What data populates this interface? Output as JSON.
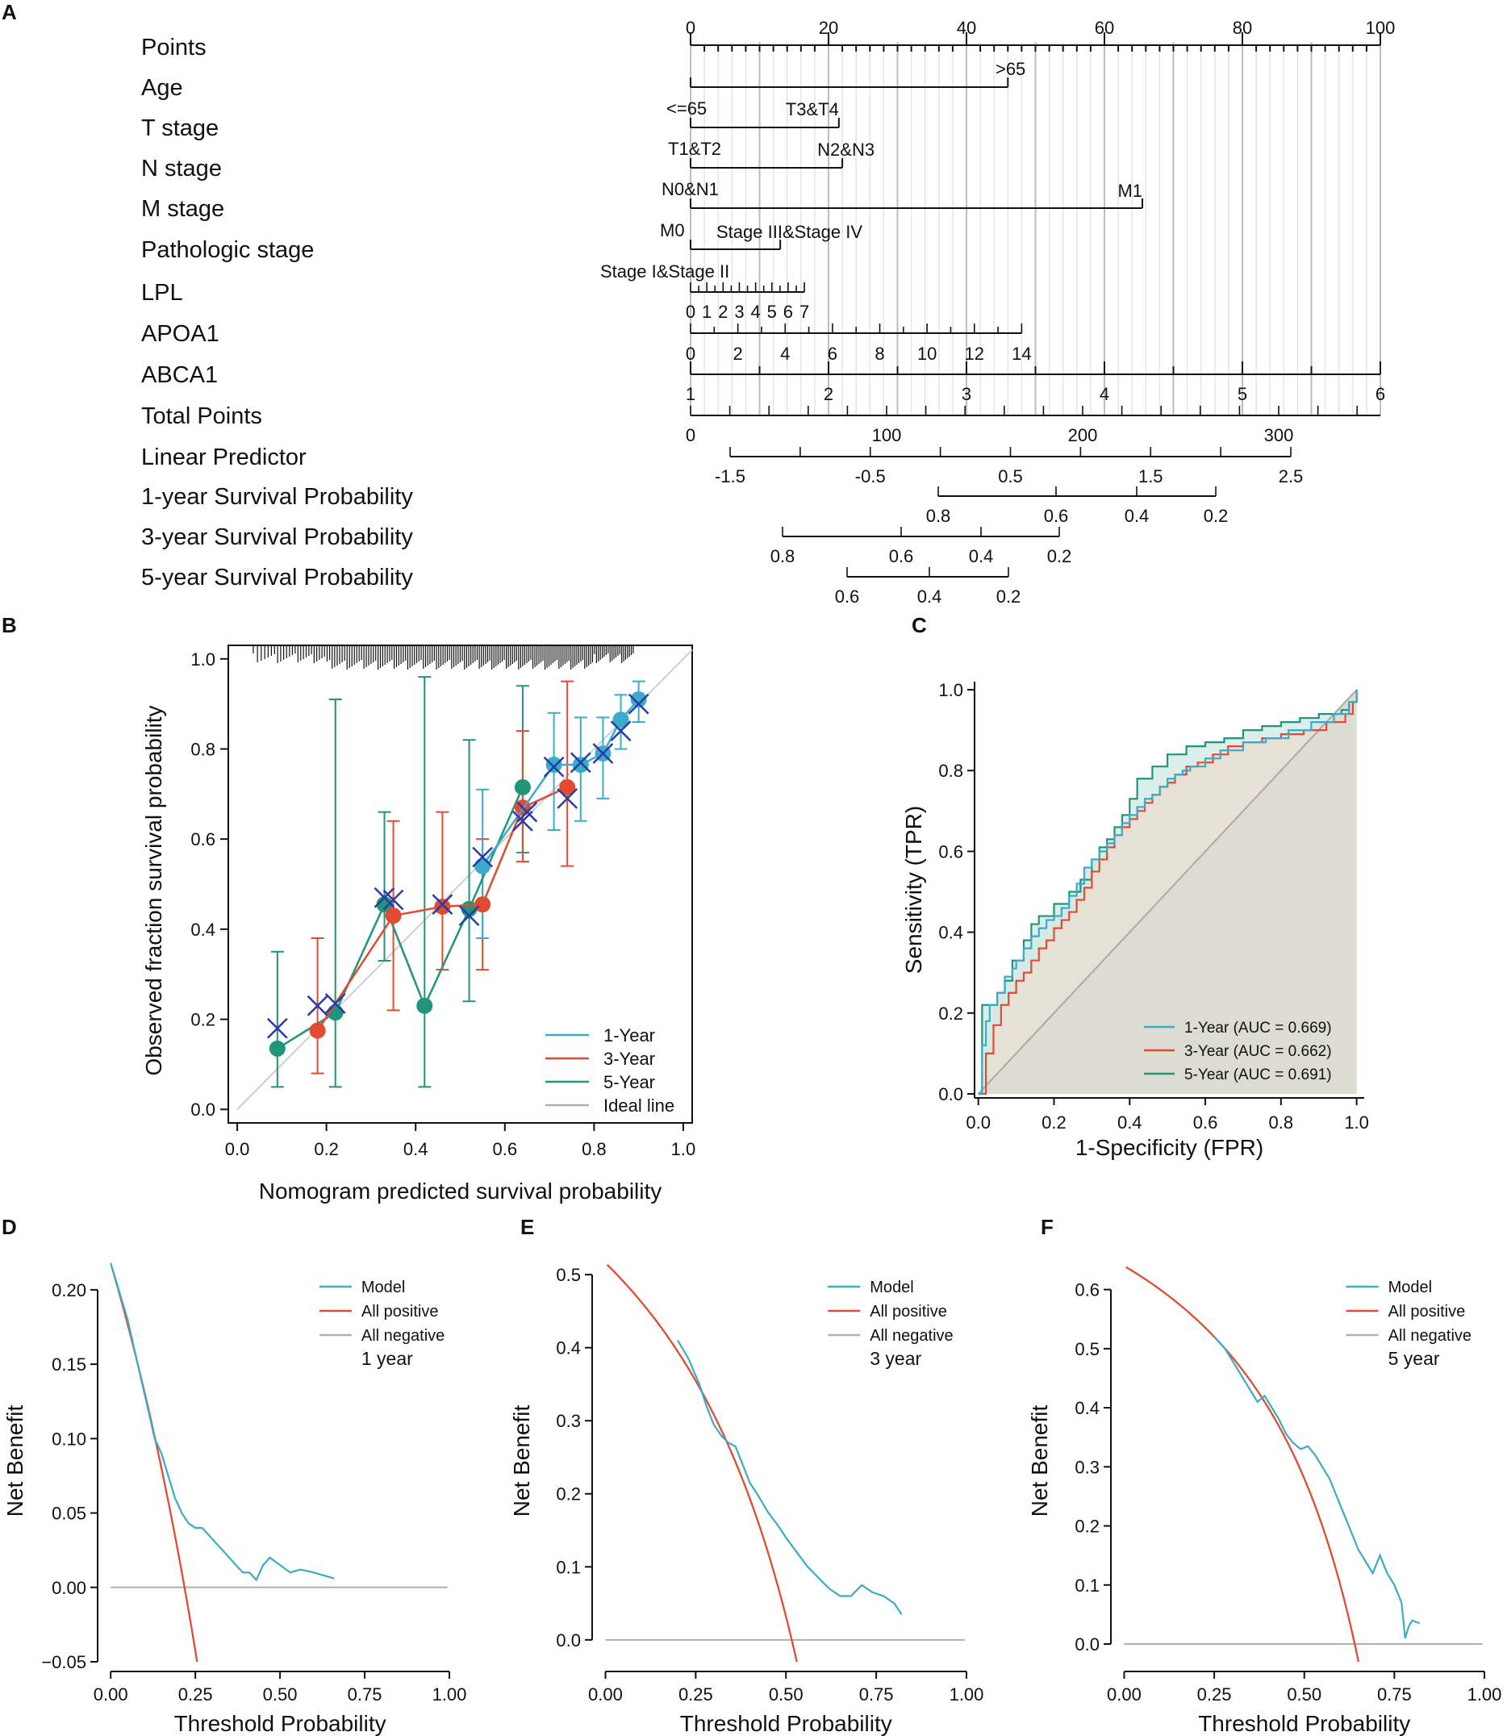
{
  "panels": {
    "A": {
      "letter": "A"
    },
    "B": {
      "letter": "B"
    },
    "C": {
      "letter": "C"
    },
    "D": {
      "letter": "D"
    },
    "E": {
      "letter": "E"
    },
    "F": {
      "letter": "F"
    }
  },
  "colors": {
    "cyan": "#3aabc8",
    "red": "#e14b32",
    "green": "#21957a",
    "cross": "#2a3aa8",
    "grey": "#b0b0b0",
    "roc_fill": "#dcdcd2"
  },
  "chart_data": [
    {
      "panel": "A",
      "type": "table",
      "title": "Nomogram",
      "row_labels": [
        "Points",
        "Age",
        "T stage",
        "N stage",
        "M stage",
        "Pathologic stage",
        "LPL",
        "APOA1",
        "ABCA1",
        "Total Points",
        "Linear Predictor",
        "1-year Survival Probability",
        "3-year Survival Probability",
        "5-year Survival Probability"
      ],
      "points_scale": {
        "min": 0,
        "max": 100,
        "major": [
          0,
          20,
          40,
          60,
          80,
          100
        ],
        "minor_step": 2
      },
      "variables": [
        {
          "name": "Age",
          "points": [
            0,
            46
          ],
          "categories": [
            "<=65",
            ">65"
          ]
        },
        {
          "name": "T stage",
          "points": [
            0,
            21.5
          ],
          "categories": [
            "T1&T2",
            "T3&T4"
          ]
        },
        {
          "name": "N stage",
          "points": [
            0,
            22
          ],
          "categories": [
            "N0&N1",
            "N2&N3"
          ]
        },
        {
          "name": "M stage",
          "points": [
            0,
            65.5
          ],
          "categories": [
            "M0",
            "M1"
          ]
        },
        {
          "name": "Pathologic stage",
          "points": [
            0,
            13
          ],
          "categories": [
            "Stage I&Stage II",
            "Stage III&Stage IV"
          ]
        },
        {
          "name": "LPL",
          "points_at_max": 16.5,
          "tick_labels": [
            "0",
            "1",
            "2",
            "3",
            "4",
            "5",
            "6",
            "7"
          ]
        },
        {
          "name": "APOA1",
          "points_at_max": 48,
          "tick_labels": [
            "0",
            "2",
            "4",
            "6",
            "8",
            "10",
            "12",
            "14"
          ]
        },
        {
          "name": "ABCA1",
          "min": 1,
          "max": 6,
          "tick_labels": [
            "1",
            "2",
            "3",
            "4",
            "5",
            "6"
          ]
        }
      ],
      "total_points": {
        "tick_labels": [
          "0",
          "100",
          "200",
          "300"
        ]
      },
      "linear_predictor": {
        "tick_labels": [
          "-1.5",
          "-0.5",
          "0.5",
          "1.5",
          "2.5"
        ]
      },
      "survival_1yr": {
        "tick_labels": [
          "0.8",
          "0.6",
          "0.4",
          "0.2"
        ]
      },
      "survival_3yr": {
        "tick_labels": [
          "0.8",
          "0.6",
          "0.4",
          "0.2"
        ]
      },
      "survival_5yr": {
        "tick_labels": [
          "0.6",
          "0.4",
          "0.2"
        ]
      }
    },
    {
      "panel": "B",
      "type": "scatter",
      "title": "",
      "xlabel": "Nomogram predicted survival probability",
      "ylabel": "Observed fraction survival probability",
      "xlim": [
        0,
        1
      ],
      "ylim": [
        0,
        1
      ],
      "xticks": [
        "0.0",
        "0.2",
        "0.4",
        "0.6",
        "0.8",
        "1.0"
      ],
      "yticks": [
        "0.0",
        "0.2",
        "0.4",
        "0.6",
        "0.8",
        "1.0"
      ],
      "legend": [
        "1-Year",
        "3-Year",
        "5-Year",
        "Ideal line"
      ],
      "series": [
        {
          "name": "1-Year",
          "x": [
            0.55,
            0.71,
            0.77,
            0.82,
            0.86,
            0.9
          ],
          "y": [
            0.54,
            0.765,
            0.765,
            0.79,
            0.865,
            0.91
          ],
          "lower": [
            0.38,
            0.62,
            0.64,
            0.69,
            0.8,
            0.86
          ],
          "upper": [
            0.71,
            0.88,
            0.87,
            0.87,
            0.92,
            0.95
          ]
        },
        {
          "name": "3-Year",
          "x": [
            0.18,
            0.35,
            0.46,
            0.55,
            0.64,
            0.74
          ],
          "y": [
            0.175,
            0.43,
            0.45,
            0.455,
            0.67,
            0.715
          ],
          "lower": [
            0.08,
            0.22,
            0.31,
            0.31,
            0.55,
            0.54
          ],
          "upper": [
            0.38,
            0.64,
            0.66,
            0.6,
            0.84,
            0.95
          ]
        },
        {
          "name": "5-Year",
          "x": [
            0.09,
            0.22,
            0.33,
            0.42,
            0.52,
            0.64
          ],
          "y": [
            0.135,
            0.215,
            0.455,
            0.23,
            0.445,
            0.715
          ],
          "lower": [
            0.05,
            0.05,
            0.33,
            0.05,
            0.24,
            0.57
          ],
          "upper": [
            0.35,
            0.91,
            0.66,
            0.96,
            0.82,
            0.94
          ]
        }
      ],
      "crosses": {
        "x": [
          0.09,
          0.18,
          0.22,
          0.33,
          0.35,
          0.46,
          0.52,
          0.55,
          0.64,
          0.65,
          0.71,
          0.74,
          0.77,
          0.82,
          0.86,
          0.9
        ],
        "y": [
          0.18,
          0.23,
          0.235,
          0.47,
          0.465,
          0.455,
          0.43,
          0.56,
          0.64,
          0.66,
          0.76,
          0.69,
          0.77,
          0.79,
          0.84,
          0.9
        ]
      }
    },
    {
      "panel": "C",
      "type": "line",
      "title": "",
      "xlabel": "1-Specificity (FPR)",
      "ylabel": "Sensitivity (TPR)",
      "xlim": [
        0,
        1
      ],
      "ylim": [
        0,
        1
      ],
      "xticks": [
        "0.0",
        "0.2",
        "0.4",
        "0.6",
        "0.8",
        "1.0"
      ],
      "yticks": [
        "0.0",
        "0.2",
        "0.4",
        "0.6",
        "0.8",
        "1.0"
      ],
      "legend": [
        "1-Year (AUC = 0.669)",
        "3-Year (AUC = 0.662)",
        "5-Year (AUC = 0.691)"
      ],
      "series": [
        {
          "name": "1-Year",
          "auc": 0.669,
          "x": [
            0,
            0.01,
            0.02,
            0.03,
            0.05,
            0.07,
            0.09,
            0.1,
            0.12,
            0.14,
            0.16,
            0.18,
            0.2,
            0.22,
            0.24,
            0.26,
            0.28,
            0.3,
            0.32,
            0.34,
            0.36,
            0.38,
            0.4,
            0.42,
            0.44,
            0.46,
            0.48,
            0.5,
            0.52,
            0.54,
            0.56,
            0.6,
            0.64,
            0.7,
            0.76,
            0.82,
            0.88,
            0.94,
            0.98,
            1
          ],
          "y": [
            0,
            0.12,
            0.18,
            0.22,
            0.25,
            0.29,
            0.31,
            0.33,
            0.36,
            0.39,
            0.41,
            0.43,
            0.44,
            0.46,
            0.49,
            0.52,
            0.56,
            0.58,
            0.6,
            0.62,
            0.64,
            0.67,
            0.69,
            0.71,
            0.73,
            0.74,
            0.76,
            0.78,
            0.79,
            0.8,
            0.81,
            0.83,
            0.85,
            0.87,
            0.88,
            0.9,
            0.92,
            0.94,
            0.97,
            1
          ]
        },
        {
          "name": "3-Year",
          "auc": 0.662,
          "x": [
            0,
            0.02,
            0.04,
            0.06,
            0.08,
            0.1,
            0.12,
            0.14,
            0.16,
            0.18,
            0.2,
            0.22,
            0.24,
            0.26,
            0.28,
            0.3,
            0.32,
            0.34,
            0.36,
            0.38,
            0.4,
            0.42,
            0.44,
            0.46,
            0.48,
            0.5,
            0.52,
            0.55,
            0.58,
            0.62,
            0.66,
            0.7,
            0.75,
            0.8,
            0.86,
            0.92,
            0.97,
            0.99,
            1
          ],
          "y": [
            0,
            0.1,
            0.17,
            0.22,
            0.25,
            0.28,
            0.3,
            0.33,
            0.36,
            0.38,
            0.41,
            0.43,
            0.45,
            0.48,
            0.51,
            0.55,
            0.58,
            0.61,
            0.64,
            0.66,
            0.68,
            0.7,
            0.72,
            0.74,
            0.76,
            0.77,
            0.79,
            0.81,
            0.82,
            0.84,
            0.86,
            0.87,
            0.88,
            0.89,
            0.9,
            0.92,
            0.94,
            0.97,
            1
          ]
        },
        {
          "name": "5-Year",
          "auc": 0.691,
          "x": [
            0,
            0.01,
            0.03,
            0.05,
            0.07,
            0.09,
            0.12,
            0.14,
            0.16,
            0.2,
            0.24,
            0.27,
            0.3,
            0.32,
            0.34,
            0.36,
            0.38,
            0.4,
            0.42,
            0.46,
            0.5,
            0.55,
            0.6,
            0.65,
            0.7,
            0.75,
            0.8,
            0.85,
            0.9,
            0.96,
            0.98,
            1
          ],
          "y": [
            0,
            0.22,
            0.22,
            0.25,
            0.28,
            0.33,
            0.38,
            0.42,
            0.44,
            0.47,
            0.5,
            0.53,
            0.58,
            0.61,
            0.63,
            0.66,
            0.69,
            0.73,
            0.78,
            0.81,
            0.84,
            0.86,
            0.87,
            0.88,
            0.9,
            0.91,
            0.92,
            0.93,
            0.94,
            0.95,
            0.97,
            1
          ]
        }
      ]
    },
    {
      "panel": "D",
      "type": "line",
      "title": "1 year",
      "xlabel": "Threshold Probability",
      "ylabel": "Net Benefit",
      "xlim": [
        0,
        1
      ],
      "ylim": [
        -0.05,
        0.22
      ],
      "xticks": [
        0,
        0.25,
        0.5,
        0.75,
        1.0
      ],
      "xtick_labels": [
        "0.00",
        "0.25",
        "0.50",
        "0.75",
        "1.00"
      ],
      "yticks": [
        -0.05,
        0,
        0.05,
        0.1,
        0.15,
        0.2
      ],
      "ytick_labels": [
        "−0.05",
        "0.00",
        "0.05",
        "0.10",
        "0.15",
        "0.20"
      ],
      "legend": [
        "Model",
        "All positive",
        "All negative"
      ],
      "prevalence": 0.218,
      "model": {
        "x": [
          0,
          0.05,
          0.1,
          0.13,
          0.15,
          0.17,
          0.19,
          0.21,
          0.23,
          0.25,
          0.27,
          0.29,
          0.31,
          0.33,
          0.35,
          0.37,
          0.39,
          0.41,
          0.43,
          0.45,
          0.47,
          0.5,
          0.53,
          0.56,
          0.6,
          0.63,
          0.66
        ],
        "y": [
          0.218,
          0.18,
          0.13,
          0.1,
          0.09,
          0.075,
          0.06,
          0.05,
          0.043,
          0.04,
          0.04,
          0.035,
          0.03,
          0.025,
          0.02,
          0.015,
          0.01,
          0.01,
          0.005,
          0.015,
          0.02,
          0.015,
          0.01,
          0.012,
          0.01,
          0.008,
          0.006
        ]
      }
    },
    {
      "panel": "E",
      "type": "line",
      "title": "3 year",
      "xlabel": "Threshold Probability",
      "ylabel": "Net Benefit",
      "xlim": [
        0,
        1
      ],
      "ylim": [
        -0.03,
        0.52
      ],
      "xticks": [
        0,
        0.25,
        0.5,
        0.75,
        1.0
      ],
      "xtick_labels": [
        "0.00",
        "0.25",
        "0.50",
        "0.75",
        "1.00"
      ],
      "yticks": [
        0,
        0.1,
        0.2,
        0.3,
        0.4,
        0.5
      ],
      "ytick_labels": [
        "0.0",
        "0.1",
        "0.2",
        "0.3",
        "0.4",
        "0.5"
      ],
      "legend": [
        "Model",
        "All positive",
        "All negative"
      ],
      "prevalence": 0.516,
      "model": {
        "x": [
          0.2,
          0.23,
          0.26,
          0.28,
          0.3,
          0.32,
          0.34,
          0.36,
          0.38,
          0.4,
          0.42,
          0.45,
          0.48,
          0.5,
          0.53,
          0.56,
          0.59,
          0.62,
          0.65,
          0.68,
          0.71,
          0.74,
          0.77,
          0.8,
          0.82
        ],
        "y": [
          0.41,
          0.385,
          0.35,
          0.32,
          0.295,
          0.28,
          0.27,
          0.265,
          0.24,
          0.215,
          0.2,
          0.175,
          0.155,
          0.14,
          0.12,
          0.1,
          0.085,
          0.07,
          0.06,
          0.06,
          0.075,
          0.065,
          0.06,
          0.05,
          0.035
        ]
      }
    },
    {
      "panel": "F",
      "type": "line",
      "title": "5 year",
      "xlabel": "Threshold Probability",
      "ylabel": "Net Benefit",
      "xlim": [
        0,
        1
      ],
      "ylim": [
        -0.03,
        0.65
      ],
      "xticks": [
        0,
        0.25,
        0.5,
        0.75,
        1.0
      ],
      "xtick_labels": [
        "0.00",
        "0.25",
        "0.50",
        "0.75",
        "1.00"
      ],
      "yticks": [
        0,
        0.1,
        0.2,
        0.3,
        0.4,
        0.5,
        0.6
      ],
      "ytick_labels": [
        "0.0",
        "0.1",
        "0.2",
        "0.3",
        "0.4",
        "0.5",
        "0.6"
      ],
      "legend": [
        "Model",
        "All positive",
        "All negative"
      ],
      "prevalence": 0.64,
      "model": {
        "x": [
          0.25,
          0.28,
          0.31,
          0.34,
          0.37,
          0.39,
          0.41,
          0.43,
          0.45,
          0.47,
          0.49,
          0.51,
          0.53,
          0.55,
          0.57,
          0.59,
          0.61,
          0.63,
          0.65,
          0.67,
          0.69,
          0.71,
          0.73,
          0.75,
          0.77,
          0.78,
          0.79,
          0.8,
          0.82
        ],
        "y": [
          0.52,
          0.5,
          0.47,
          0.44,
          0.41,
          0.42,
          0.4,
          0.38,
          0.355,
          0.34,
          0.33,
          0.335,
          0.32,
          0.3,
          0.28,
          0.25,
          0.22,
          0.19,
          0.16,
          0.14,
          0.12,
          0.15,
          0.12,
          0.1,
          0.07,
          0.01,
          0.03,
          0.04,
          0.035
        ]
      }
    }
  ]
}
